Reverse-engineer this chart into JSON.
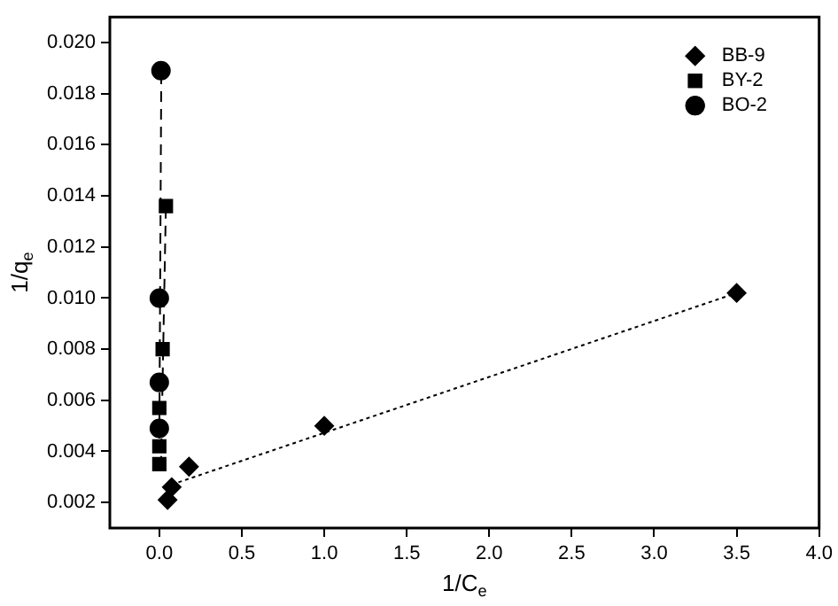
{
  "chart_data": {
    "type": "scatter",
    "xlabel": "1/C$_{e}$",
    "ylabel": "1/q$_{e}$",
    "xlim": [
      -0.3,
      4.0
    ],
    "xticks": [
      {
        "value": 0,
        "label": "0.0"
      },
      {
        "value": 0.5,
        "label": "0.5"
      },
      {
        "value": 1,
        "label": "1.0"
      },
      {
        "value": 1.5,
        "label": "1.5"
      },
      {
        "value": 2,
        "label": "2.0"
      },
      {
        "value": 2.5,
        "label": "2.5"
      },
      {
        "value": 3,
        "label": "3.0"
      },
      {
        "value": 3.5,
        "label": "3.5"
      },
      {
        "value": 4,
        "label": "4.0"
      }
    ],
    "ylim": [
      0.001,
      0.021
    ],
    "yticks": [
      {
        "value": 0.002,
        "label": "0.002"
      },
      {
        "value": 0.004,
        "label": "0.004"
      },
      {
        "value": 0.006,
        "label": "0.006"
      },
      {
        "value": 0.008,
        "label": "0.008"
      },
      {
        "value": 0.01,
        "label": "0.010"
      },
      {
        "value": 0.012,
        "label": "0.012"
      },
      {
        "value": 0.014,
        "label": "0.014"
      },
      {
        "value": 0.016,
        "label": "0.016"
      },
      {
        "value": 0.018,
        "label": "0.018"
      },
      {
        "value": 0.02,
        "label": "0.020"
      }
    ],
    "grid": false,
    "legend": "top right",
    "series": [
      {
        "name": "BB-9",
        "color": "#000000",
        "marker": "diamond",
        "x": [
          0.05,
          0.075,
          0.18,
          1.0,
          3.5
        ],
        "values": [
          0.0021,
          0.0026,
          0.0034,
          0.005,
          0.0102
        ]
      },
      {
        "name": "BY-2",
        "color": "#000000",
        "marker": "square",
        "x": [
          0.0,
          0.0,
          0.0,
          0.02,
          0.04
        ],
        "values": [
          0.0035,
          0.0042,
          0.0057,
          0.008,
          0.0136
        ]
      },
      {
        "name": "BO-2",
        "color": "#000000",
        "marker": "circle",
        "x": [
          0.0,
          0.0,
          0.0,
          0.01
        ],
        "values": [
          0.0049,
          0.0067,
          0.01,
          0.0189
        ]
      },
      {
        "type": "line",
        "color": "#000000",
        "line_style": "dotted",
        "marker": "none",
        "x": [
          0.075,
          3.5
        ],
        "values": [
          0.0027,
          0.0102
        ]
      },
      {
        "type": "line",
        "color": "#000000",
        "line_style": "dashed",
        "marker": "none",
        "x": [
          0.01,
          0.04
        ],
        "values": [
          0.0034,
          0.0137
        ]
      },
      {
        "type": "line",
        "color": "#000000",
        "line_style": "dashed",
        "marker": "none",
        "x": [
          0.0,
          0.012
        ],
        "values": [
          0.0045,
          0.019
        ]
      }
    ]
  }
}
